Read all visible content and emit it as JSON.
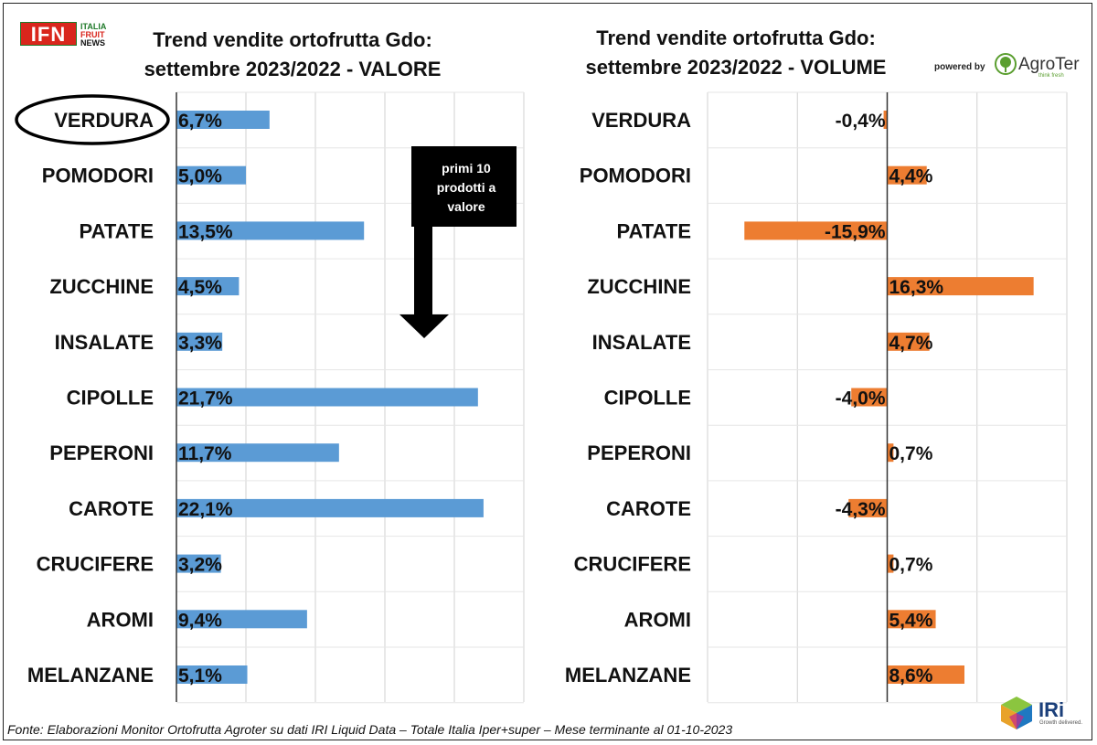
{
  "logo": {
    "ifn": "IFN",
    "sub": [
      "ITALIA",
      "FRUIT",
      "NEWS"
    ]
  },
  "powered_by": "powered by",
  "agroter": {
    "name": "AgroTer",
    "tagline": "think fresh"
  },
  "iri": {
    "name": "IRi",
    "tagline": "Growth delivered."
  },
  "arrow_label": [
    "primi 10",
    "prodotti a",
    "valore"
  ],
  "footer": "Fonte: Elaborazioni Monitor Ortofrutta Agroter su dati IRI Liquid Data – Totale Italia Iper+super – Mese terminante al 01-10-2023",
  "colors": {
    "valore": "#5b9bd5",
    "volume": "#ed7d31",
    "highlight_circle": "#000000",
    "arrow": "#000000"
  },
  "highlighted_category": "VERDURA",
  "chart_data": [
    {
      "type": "bar",
      "orientation": "horizontal",
      "title": [
        "Trend vendite ortofrutta Gdo:",
        "settembre 2023/2022 - VALORE"
      ],
      "categories": [
        "VERDURA",
        "POMODORI",
        "PATATE",
        "ZUCCHINE",
        "INSALATE",
        "CIPOLLE",
        "PEPERONI",
        "CAROTE",
        "CRUCIFERE",
        "AROMI",
        "MELANZANE"
      ],
      "values": [
        6.7,
        5.0,
        13.5,
        4.5,
        3.3,
        21.7,
        11.7,
        22.1,
        3.2,
        9.4,
        5.1
      ],
      "labels": [
        "6,7%",
        "5,0%",
        "13,5%",
        "4,5%",
        "3,3%",
        "21,7%",
        "11,7%",
        "22,1%",
        "3,2%",
        "9,4%",
        "5,1%"
      ],
      "xlim": [
        0,
        25
      ],
      "grid": true
    },
    {
      "type": "bar",
      "orientation": "horizontal",
      "title": [
        "Trend vendite ortofrutta Gdo:",
        "settembre 2023/2022 - VOLUME"
      ],
      "categories": [
        "VERDURA",
        "POMODORI",
        "PATATE",
        "ZUCCHINE",
        "INSALATE",
        "CIPOLLE",
        "PEPERONI",
        "CAROTE",
        "CRUCIFERE",
        "AROMI",
        "MELANZANE"
      ],
      "values": [
        -0.4,
        4.4,
        -15.9,
        16.3,
        4.7,
        -4.0,
        0.7,
        -4.3,
        0.7,
        5.4,
        8.6
      ],
      "labels": [
        "-0,4%",
        "4,4%",
        "-15,9%",
        "16,3%",
        "4,7%",
        "-4,0%",
        "0,7%",
        "-4,3%",
        "0,7%",
        "5,4%",
        "8,6%"
      ],
      "xlim": [
        -20,
        20
      ],
      "grid": true
    }
  ]
}
